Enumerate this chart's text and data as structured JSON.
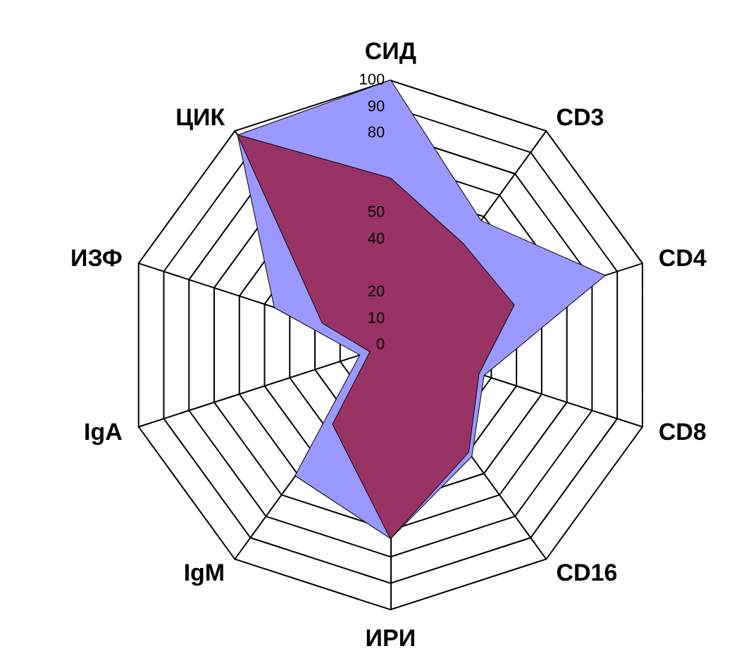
{
  "chart_data": {
    "type": "radar",
    "categories": [
      "СИД",
      "CD3",
      "CD4",
      "CD8",
      "CD16",
      "ИРИ",
      "IgM",
      "IgA",
      "ИЗФ",
      "ЦИК"
    ],
    "series": [
      {
        "color": "#9999ff",
        "values": [
          100,
          58,
          85,
          37,
          52,
          73,
          61,
          12,
          46,
          98
        ]
      },
      {
        "color": "#993366",
        "values": [
          63,
          47,
          49,
          35,
          50,
          73,
          37,
          8,
          27,
          98
        ]
      }
    ],
    "ylim": [
      0,
      100
    ],
    "yticks": [
      0,
      10,
      20,
      40,
      50,
      80,
      90,
      100
    ]
  }
}
